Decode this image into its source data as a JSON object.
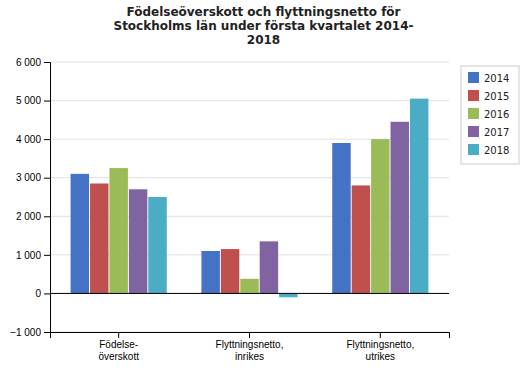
{
  "chart_data": {
    "type": "bar",
    "title": "Födelseöverskott och flyttningsnetto för\nStockholms län under första kvartalet 2014-\n2018",
    "categories": [
      "Födelse-\növerskott",
      "Flyttningsnetto,\ninrikes",
      "Flyttningsnetto,\nutrikes"
    ],
    "series": [
      {
        "name": "2014",
        "color": "#4472c4",
        "values": [
          3100,
          1100,
          3900
        ]
      },
      {
        "name": "2015",
        "color": "#c0504d",
        "values": [
          2850,
          1150,
          2800
        ]
      },
      {
        "name": "2016",
        "color": "#9bbb59",
        "values": [
          3250,
          380,
          4000
        ]
      },
      {
        "name": "2017",
        "color": "#8064a2",
        "values": [
          2700,
          1350,
          4450
        ]
      },
      {
        "name": "2018",
        "color": "#4bacc6",
        "values": [
          2500,
          -100,
          5050
        ]
      }
    ],
    "ylim": [
      -1000,
      6000
    ],
    "yticks": [
      {
        "value": -1000,
        "label": "−1 000"
      },
      0,
      {
        "value": 1000,
        "label": "1 000"
      },
      {
        "value": 2000,
        "label": "2 000"
      },
      {
        "value": 3000,
        "label": "3 000"
      },
      {
        "value": 4000,
        "label": "4 000"
      },
      {
        "value": 5000,
        "label": "5 000"
      },
      {
        "value": 6000,
        "label": "6 000"
      }
    ],
    "grid": true,
    "legend": "right"
  }
}
